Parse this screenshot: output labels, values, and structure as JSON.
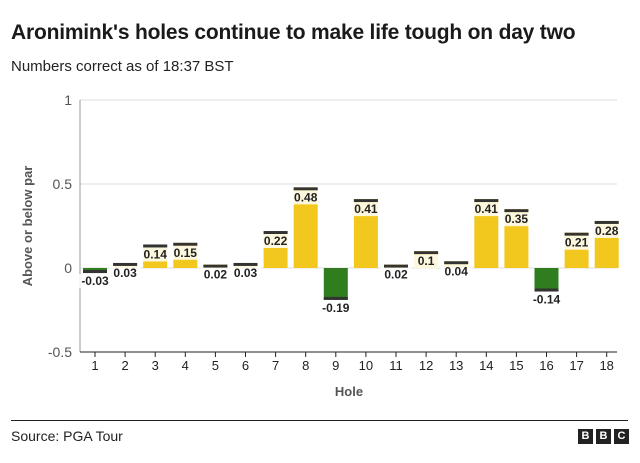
{
  "header": {
    "title": "Aronimink's holes continue to make life tough on day two",
    "subtitle": "Numbers correct as of 18:37 BST"
  },
  "footer": {
    "source": "Source: PGA Tour",
    "logo": [
      "B",
      "B",
      "C"
    ]
  },
  "colors": {
    "positive": "#f2c81e",
    "negative": "#2f7d1f",
    "grid": "#dddddd",
    "axis": "#222222",
    "label": "#222222"
  },
  "chart_data": {
    "type": "bar",
    "xlabel": "Hole",
    "ylabel": "Above or below par",
    "ylim": [
      -0.5,
      1
    ],
    "yticks": [
      "1",
      "0.5",
      "0",
      "-0.5"
    ],
    "ytick_values": [
      1,
      0.5,
      0,
      -0.5
    ],
    "grid": true,
    "categories": [
      "1",
      "2",
      "3",
      "4",
      "5",
      "6",
      "7",
      "8",
      "9",
      "10",
      "11",
      "12",
      "13",
      "14",
      "15",
      "16",
      "17",
      "18"
    ],
    "values": [
      -0.03,
      0.03,
      0.14,
      0.15,
      0.02,
      0.03,
      0.22,
      0.48,
      -0.19,
      0.41,
      0.02,
      0.1,
      0.04,
      0.41,
      0.35,
      -0.14,
      0.21,
      0.28
    ],
    "labels": [
      "-0.03",
      "0.03",
      "0.14",
      "0.15",
      "0.02",
      "0.03",
      "0.22",
      "0.48",
      "-0.19",
      "0.41",
      "0.02",
      "0.1",
      "0.04",
      "0.41",
      "0.35",
      "-0.14",
      "0.21",
      "0.28"
    ]
  }
}
